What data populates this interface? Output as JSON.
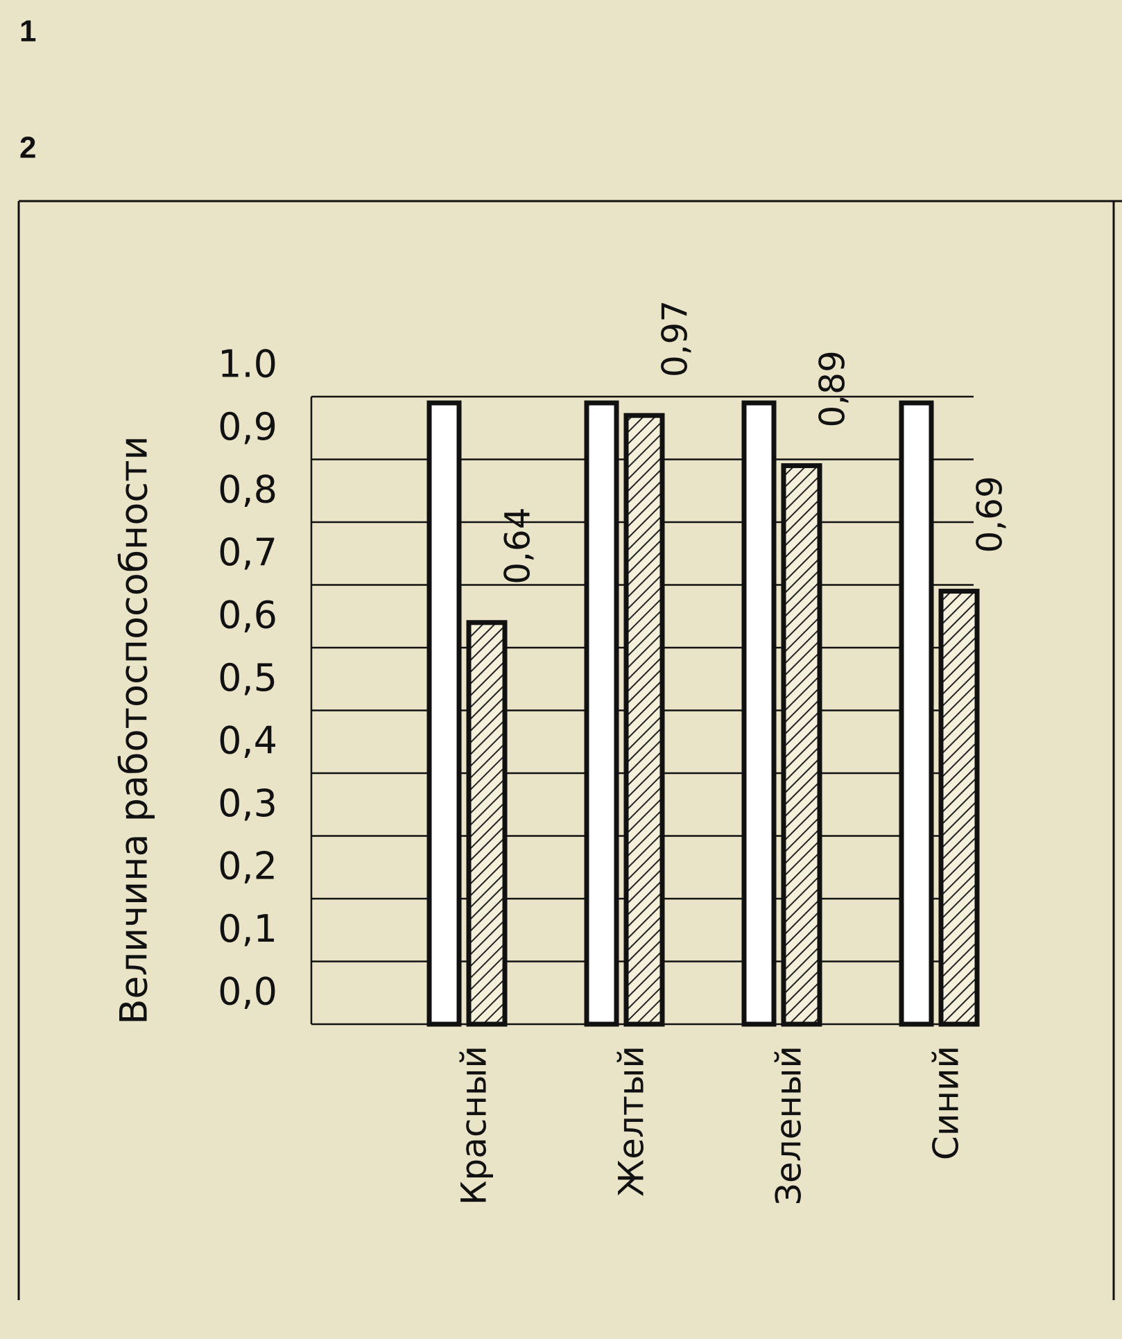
{
  "chart_data": {
    "type": "bar",
    "annotations": [
      "1",
      "2"
    ],
    "y_label": "Величина работоспособности",
    "categories": [
      "Красный",
      "Желтый",
      "Зеленый",
      "Синий"
    ],
    "series": [
      {
        "color": "#ffffff",
        "values": [
          0.99,
          0.99,
          0.99,
          0.99
        ]
      },
      {
        "color": "#222222",
        "hatch": true,
        "values": [
          0.64,
          0.97,
          0.89,
          0.69
        ],
        "value_labels": [
          "0,64",
          "0,97",
          "0,89",
          "0,69"
        ]
      }
    ],
    "ylim": [
      0,
      1
    ],
    "yticks": [
      {
        "value": 0,
        "label": "0,0"
      },
      {
        "value": 0.1,
        "label": "0,1"
      },
      {
        "value": 0.2,
        "label": "0,2"
      },
      {
        "value": 0.3,
        "label": "0,3"
      },
      {
        "value": 0.4,
        "label": "0,4"
      },
      {
        "value": 0.5,
        "label": "0,5"
      },
      {
        "value": 0.6,
        "label": "0,6"
      },
      {
        "value": 0.7,
        "label": "0,7"
      },
      {
        "value": 0.8,
        "label": "0,8"
      },
      {
        "value": 0.9,
        "label": "0,9"
      },
      {
        "value": 1,
        "label": "1.0"
      }
    ],
    "grid": true
  }
}
